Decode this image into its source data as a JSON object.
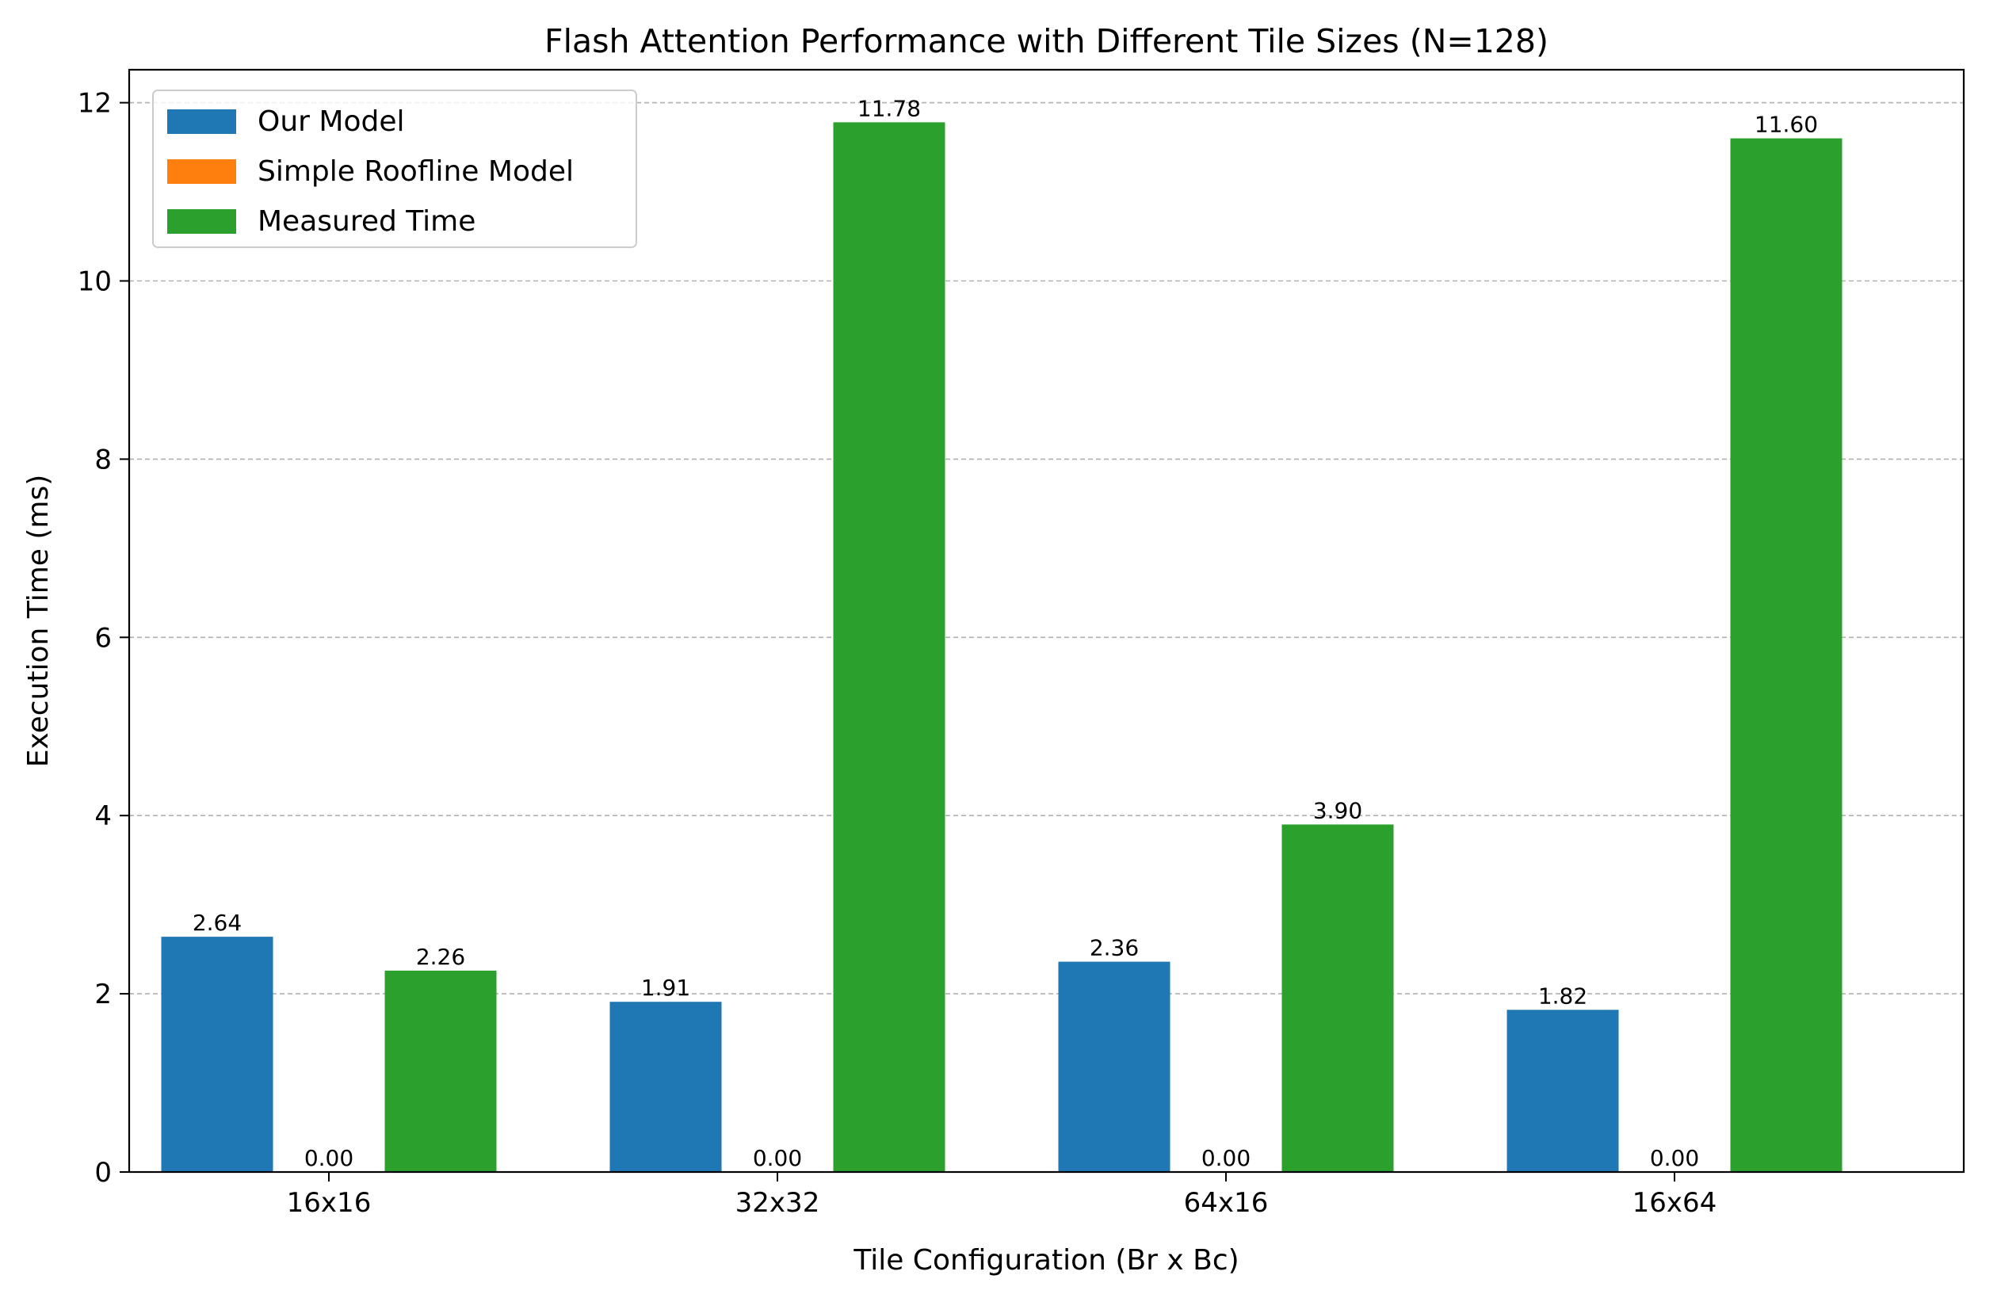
{
  "chart_data": {
    "type": "bar",
    "title": "Flash Attention Performance with Different Tile Sizes (N=128)",
    "xlabel": "Tile Configuration (Br x Bc)",
    "ylabel": "Execution Time (ms)",
    "categories": [
      "16x16",
      "32x32",
      "64x16",
      "16x64"
    ],
    "ylim": [
      0,
      12.37
    ],
    "yticks": [
      0,
      2,
      4,
      6,
      8,
      10,
      12
    ],
    "grid": "y-dashed",
    "legend_position": "top-left",
    "series": [
      {
        "name": "Our Model",
        "color": "#1f77b4",
        "values": [
          2.64,
          1.91,
          2.36,
          1.82
        ],
        "labels": [
          "2.64",
          "1.91",
          "2.36",
          "1.82"
        ]
      },
      {
        "name": "Simple Roofline Model",
        "color": "#ff7f0e",
        "values": [
          0.0,
          0.0,
          0.0,
          0.0
        ],
        "labels": [
          "0.00",
          "0.00",
          "0.00",
          "0.00"
        ]
      },
      {
        "name": "Measured Time",
        "color": "#2ca02c",
        "values": [
          2.26,
          11.78,
          3.9,
          11.6
        ],
        "labels": [
          "2.26",
          "11.78",
          "3.90",
          "11.60"
        ]
      }
    ]
  }
}
